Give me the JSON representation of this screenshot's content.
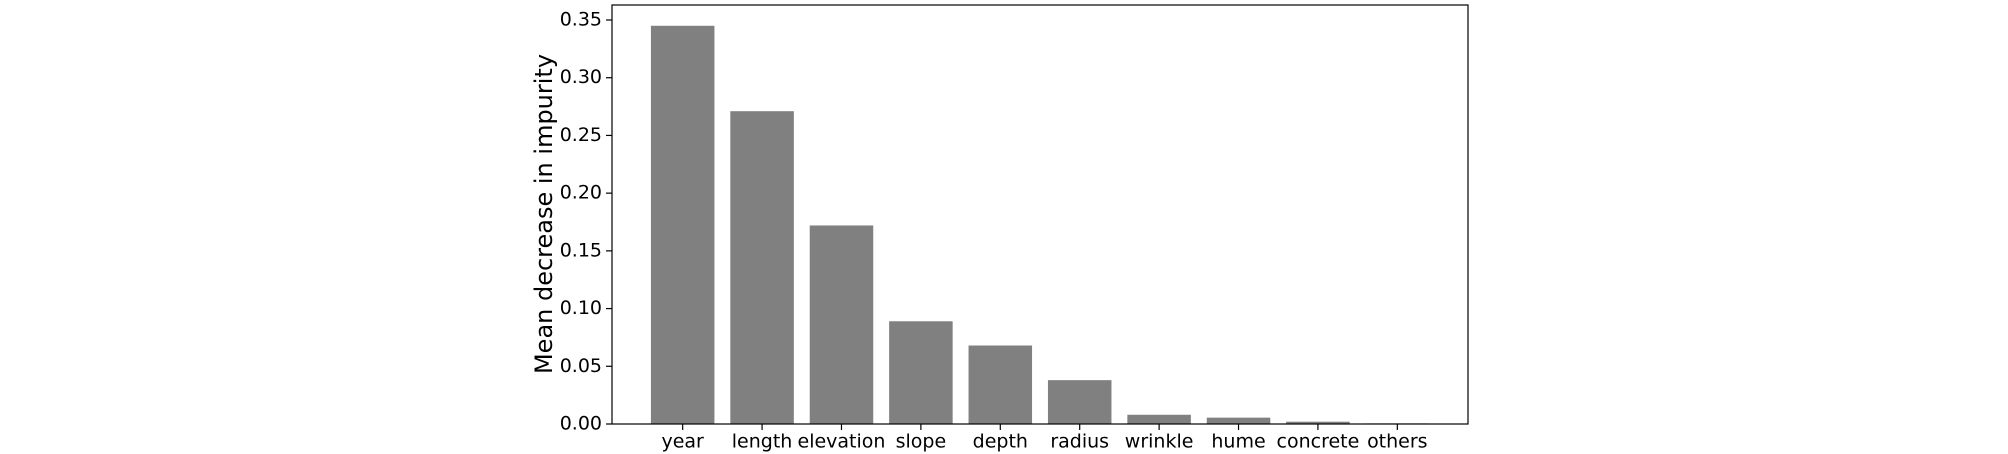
{
  "chart_data": {
    "type": "bar",
    "y_label": "Mean decrease in impurity",
    "categories": [
      "year",
      "length",
      "elevation",
      "slope",
      "depth",
      "radius",
      "wrinkle",
      "hume",
      "concrete",
      "others"
    ],
    "values": [
      0.345,
      0.271,
      0.172,
      0.089,
      0.068,
      0.038,
      0.008,
      0.0055,
      0.002,
      0.0005
    ],
    "color": "#808080",
    "ylim": [
      0,
      0.363
    ],
    "yticks": [
      {
        "value": 0,
        "label": "0.00"
      },
      {
        "value": 0.05,
        "label": "0.05"
      },
      {
        "value": 0.1,
        "label": "0.10"
      },
      {
        "value": 0.15,
        "label": "0.15"
      },
      {
        "value": 0.2,
        "label": "0.20"
      },
      {
        "value": 0.25,
        "label": "0.25"
      },
      {
        "value": 0.3,
        "label": "0.30"
      },
      {
        "value": 0.35,
        "label": "0.35"
      }
    ],
    "grid": false
  }
}
